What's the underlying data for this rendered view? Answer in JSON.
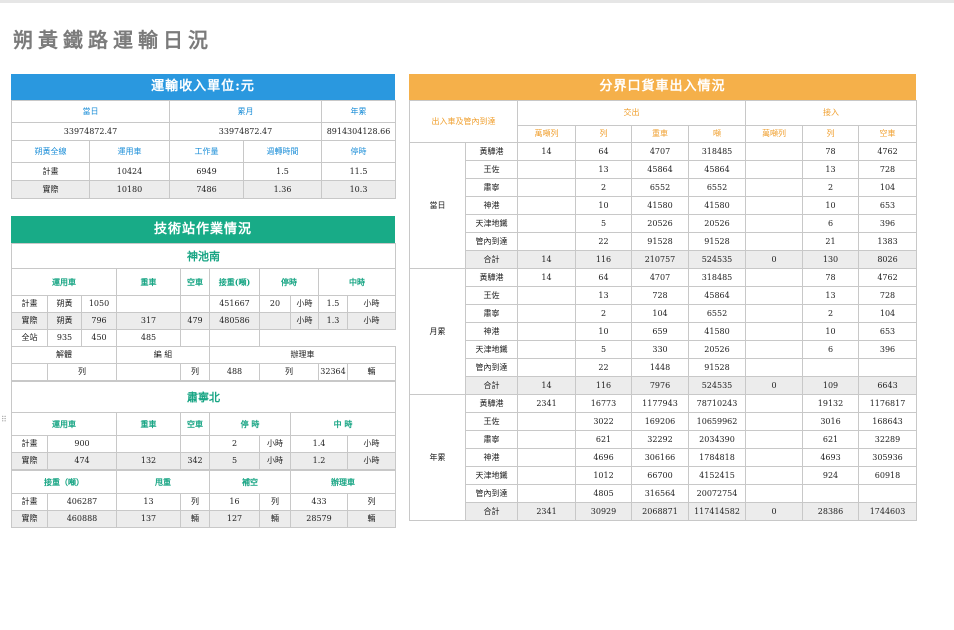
{
  "page_title": "朔黃鐵路運輸日況",
  "colors": {
    "blue": "#2a98df",
    "teal": "#18ab87",
    "orange": "#f5b04a"
  },
  "revenue": {
    "title": "運輸收入單位:元",
    "headers": [
      "當日",
      "累月",
      "年累"
    ],
    "values": [
      "33974872.47",
      "33974872.47",
      "8914304128.66"
    ],
    "line_headers": [
      "朔黃全線",
      "運用車",
      "工作量",
      "週轉時間",
      "停時"
    ],
    "rows": [
      [
        "計畫",
        "10424",
        "6949",
        "1.5",
        "11.5"
      ],
      [
        "實際",
        "10180",
        "7486",
        "1.36",
        "10.3"
      ]
    ]
  },
  "station": {
    "title": "技術站作業情況",
    "shenchi": {
      "name": "神池南",
      "headers": [
        "運用車",
        "重車",
        "空車",
        "接重(噸)",
        "停時",
        "中時"
      ],
      "plan": {
        "label": "計畫",
        "sub": "朔黃",
        "yong": "1050",
        "jie": "451667",
        "ting": "20",
        "ting_unit": "小時",
        "zhong": "1.5",
        "zhong_unit": "小時"
      },
      "actual": {
        "label": "實際",
        "sub": "朔黃",
        "yong": "796",
        "heavy": "317",
        "empty": "479",
        "jie": "480586",
        "ting_unit": "小時",
        "zhong": "1.3",
        "zhong_unit": "小時"
      },
      "all": {
        "label": "全站",
        "a": "935",
        "b": "450",
        "c": "485"
      },
      "ops_headers": [
        "解體",
        "編 組",
        "辦理車"
      ],
      "ops_vals": {
        "jieti_unit": "列",
        "bianzu_unit": "列",
        "bianzu": "488",
        "banli_unit": "列",
        "banli": "32364",
        "banli_unit2": "輛"
      }
    },
    "suning": {
      "name": "肅寧北",
      "headers": [
        "運用車",
        "重車",
        "空車",
        "停 時",
        "中 時"
      ],
      "plan": {
        "label": "計畫",
        "yong": "900",
        "ting": "2",
        "ting_unit": "小時",
        "zhong": "1.4",
        "zhong_unit": "小時"
      },
      "actual": {
        "label": "實際",
        "yong": "474",
        "heavy": "132",
        "empty": "342",
        "ting": "5",
        "ting_unit": "小時",
        "zhong": "1.2",
        "zhong_unit": "小時"
      },
      "headers2": [
        "接重（噸）",
        "甩重",
        "補空",
        "辦理車"
      ],
      "plan2": {
        "label": "計畫",
        "jie": "406287",
        "shuai": "13",
        "shuai_unit": "列",
        "bu": "16",
        "bu_unit": "列",
        "ban": "433",
        "ban_unit": "列"
      },
      "actual2": {
        "label": "實際",
        "jie": "460888",
        "shuai": "137",
        "shuai_unit": "輛",
        "bu": "127",
        "bu_unit": "輛",
        "ban": "28579",
        "ban_unit": "輛"
      }
    }
  },
  "border": {
    "title": "分界口貨車出入情況",
    "corner": "出入車及管內到達",
    "out_label": "交出",
    "in_label": "接入",
    "cols": [
      "萬噸列",
      "列",
      "重車",
      "噸",
      "萬噸列",
      "列",
      "空車"
    ],
    "groups": [
      {
        "name": "當日",
        "rows": [
          [
            "黃驊港",
            "14",
            "64",
            "4707",
            "318485",
            "",
            "78",
            "4762"
          ],
          [
            "王佐",
            "",
            "13",
            "45864",
            "45864",
            "",
            "13",
            "728"
          ],
          [
            "肅寧",
            "",
            "2",
            "6552",
            "6552",
            "",
            "2",
            "104"
          ],
          [
            "神港",
            "",
            "10",
            "41580",
            "41580",
            "",
            "10",
            "653"
          ],
          [
            "天津地鐵",
            "",
            "5",
            "20526",
            "20526",
            "",
            "6",
            "396"
          ],
          [
            "管內到達",
            "",
            "22",
            "91528",
            "91528",
            "",
            "21",
            "1383"
          ],
          [
            "合計",
            "14",
            "116",
            "210757",
            "524535",
            "0",
            "130",
            "8026"
          ]
        ]
      },
      {
        "name": "月累",
        "rows": [
          [
            "黃驊港",
            "14",
            "64",
            "4707",
            "318485",
            "",
            "78",
            "4762"
          ],
          [
            "王佐",
            "",
            "13",
            "728",
            "45864",
            "",
            "13",
            "728"
          ],
          [
            "肅寧",
            "",
            "2",
            "104",
            "6552",
            "",
            "2",
            "104"
          ],
          [
            "神港",
            "",
            "10",
            "659",
            "41580",
            "",
            "10",
            "653"
          ],
          [
            "天津地鐵",
            "",
            "5",
            "330",
            "20526",
            "",
            "6",
            "396"
          ],
          [
            "管內到達",
            "",
            "22",
            "1448",
            "91528",
            "",
            "",
            ""
          ],
          [
            "合計",
            "14",
            "116",
            "7976",
            "524535",
            "0",
            "109",
            "6643"
          ]
        ]
      },
      {
        "name": "年累",
        "rows": [
          [
            "黃驊港",
            "2341",
            "16773",
            "1177943",
            "78710243",
            "",
            "19132",
            "1176817"
          ],
          [
            "王佐",
            "",
            "3022",
            "169206",
            "10659962",
            "",
            "3016",
            "168643"
          ],
          [
            "肅寧",
            "",
            "621",
            "32292",
            "2034390",
            "",
            "621",
            "32289"
          ],
          [
            "神港",
            "",
            "4696",
            "306166",
            "1784818",
            "",
            "4693",
            "305936"
          ],
          [
            "天津地鐵",
            "",
            "1012",
            "66700",
            "4152415",
            "",
            "924",
            "60918"
          ],
          [
            "管內到達",
            "",
            "4805",
            "316564",
            "20072754",
            "",
            "",
            ""
          ],
          [
            "合計",
            "2341",
            "30929",
            "2068871",
            "117414582",
            "0",
            "28386",
            "1744603"
          ]
        ]
      }
    ]
  }
}
